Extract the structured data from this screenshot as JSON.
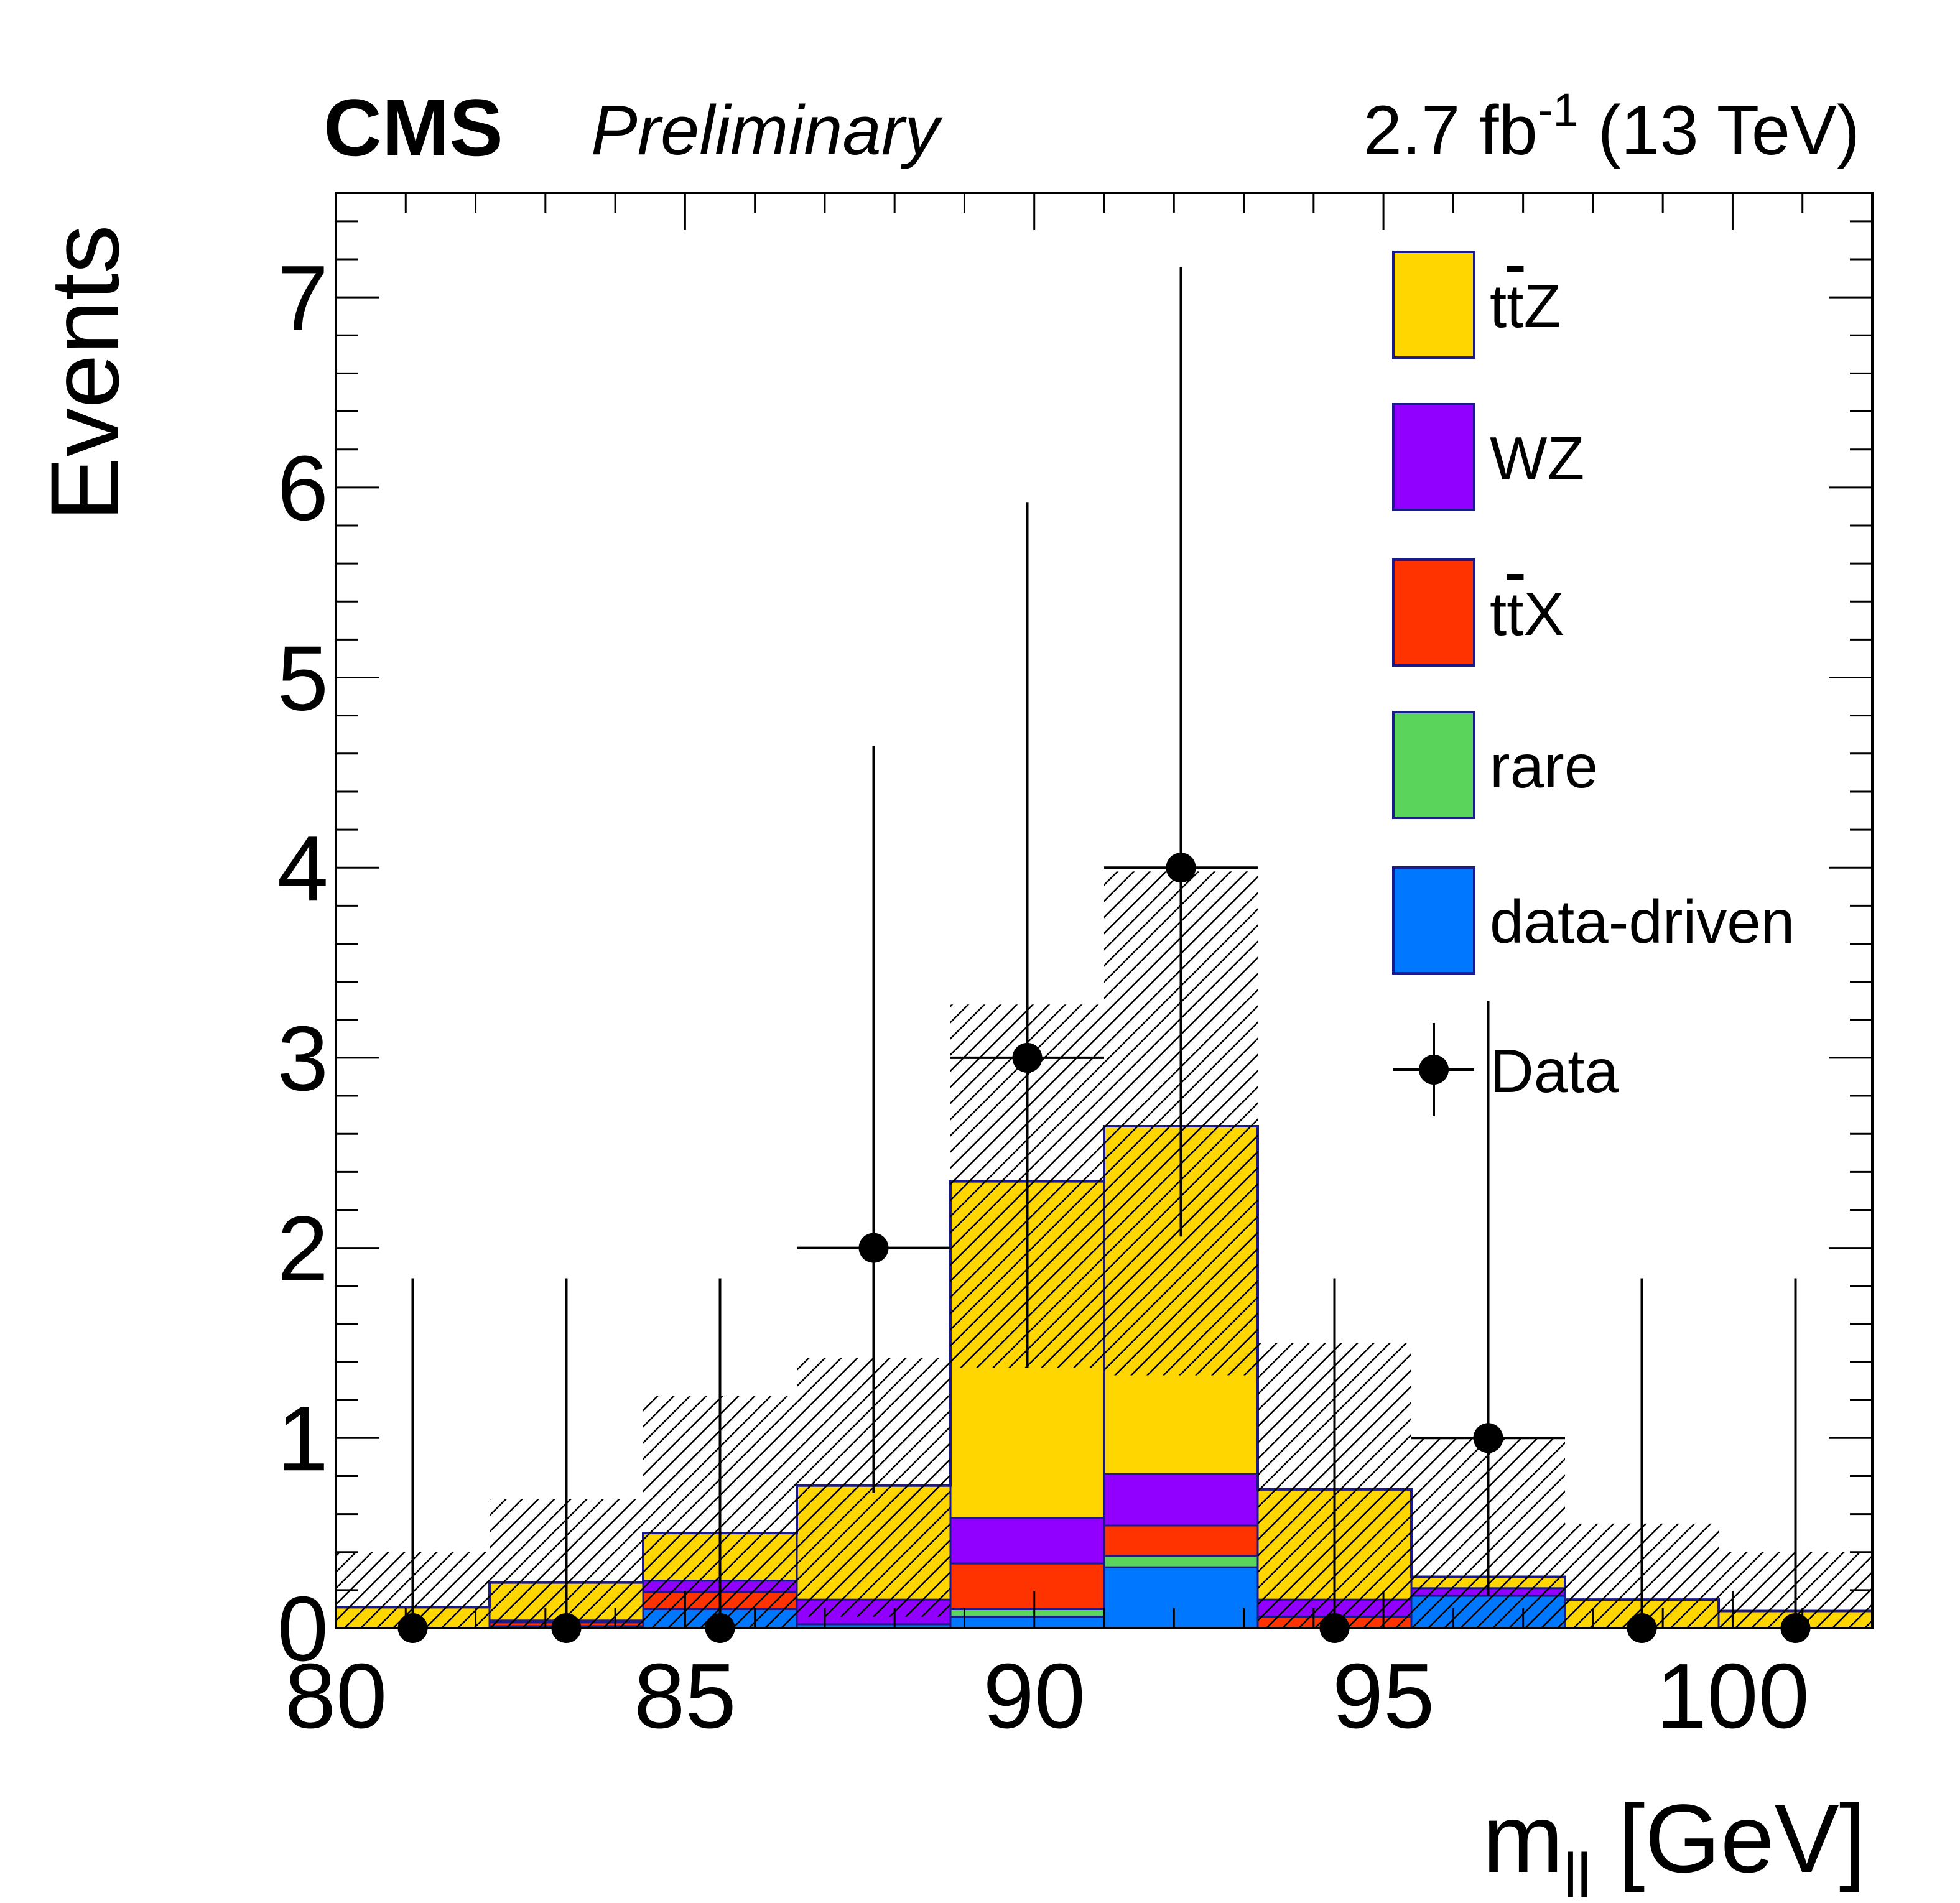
{
  "header": {
    "experiment": "CMS",
    "status": "Preliminary",
    "lumi_value": "2.7 fb",
    "lumi_exponent": "-1",
    "energy": " (13 TeV)"
  },
  "axes": {
    "x_title_main": "m",
    "x_title_sub": "ll",
    "x_title_unit": " [GeV]",
    "y_title": "Events"
  },
  "colors": {
    "ttZ": "#ffd600",
    "WZ": "#9100ff",
    "ttX": "#ff3300",
    "rare": "#5ad45a",
    "data_driven": "#0077ff",
    "outline": "#1a1a8c",
    "data": "#000000"
  },
  "legend": [
    {
      "key": "ttZ",
      "pre": "t",
      "bar": "t",
      "post": "Z"
    },
    {
      "key": "WZ",
      "pre": "WZ",
      "bar": "",
      "post": ""
    },
    {
      "key": "ttX",
      "pre": "t",
      "bar": "t",
      "post": "X"
    },
    {
      "key": "rare",
      "pre": "rare",
      "bar": "",
      "post": ""
    },
    {
      "key": "data_driven",
      "pre": "data-driven",
      "bar": "",
      "post": ""
    },
    {
      "key": "data",
      "pre": "Data",
      "bar": "",
      "post": ""
    }
  ],
  "chart_data": {
    "type": "bar",
    "stacked": true,
    "xlim": [
      80,
      102
    ],
    "ylim": [
      0,
      7.55
    ],
    "bin_edges": [
      80,
      82.2,
      84.4,
      86.6,
      88.8,
      91,
      93.2,
      95.4,
      97.6,
      99.8,
      102
    ],
    "x_ticks": [
      "80",
      "85",
      "90",
      "95",
      "100"
    ],
    "x_tick_values": [
      80,
      85,
      90,
      95,
      100
    ],
    "y_ticks": [
      "0",
      "1",
      "2",
      "3",
      "4",
      "5",
      "6",
      "7"
    ],
    "y_tick_values": [
      0,
      1,
      2,
      3,
      4,
      5,
      6,
      7
    ],
    "series": [
      {
        "key": "data_driven",
        "name": "data-driven",
        "values": [
          0.0,
          0.01,
          0.1,
          0.02,
          0.06,
          0.32,
          0.0,
          0.17,
          0.0,
          0.0
        ]
      },
      {
        "key": "rare",
        "name": "rare",
        "values": [
          0.0,
          0.0,
          0.0,
          0.0,
          0.04,
          0.06,
          0.0,
          0.0,
          0.0,
          0.0
        ]
      },
      {
        "key": "ttX",
        "name": "ttX",
        "values": [
          0.0,
          0.02,
          0.09,
          0.0,
          0.24,
          0.16,
          0.06,
          0.0,
          0.0,
          0.0
        ]
      },
      {
        "key": "WZ",
        "name": "WZ",
        "values": [
          0.0,
          0.01,
          0.06,
          0.13,
          0.24,
          0.27,
          0.09,
          0.04,
          0.0,
          0.0
        ]
      },
      {
        "key": "ttZ",
        "name": "ttZ",
        "values": [
          0.11,
          0.2,
          0.25,
          0.6,
          1.77,
          1.83,
          0.58,
          0.06,
          0.15,
          0.09
        ]
      }
    ],
    "uncertainty_band": {
      "low": [
        0.0,
        0.0,
        0.0,
        0.06,
        1.37,
        1.33,
        0.0,
        0.0,
        0.0,
        0.0
      ],
      "high": [
        0.4,
        0.68,
        1.22,
        1.42,
        3.28,
        3.98,
        1.5,
        1.0,
        0.55,
        0.4
      ]
    },
    "data_points": {
      "x": [
        81.1,
        83.3,
        85.5,
        87.7,
        89.9,
        92.1,
        94.3,
        96.5,
        98.7,
        100.9
      ],
      "y": [
        0,
        0,
        0,
        2,
        3,
        4,
        0,
        1,
        0,
        0
      ],
      "err_low": [
        0,
        0,
        0,
        1.29,
        1.63,
        1.94,
        0,
        0.83,
        0,
        0
      ],
      "err_high": [
        1.84,
        1.84,
        1.84,
        2.64,
        2.92,
        3.16,
        1.84,
        2.3,
        1.84,
        1.84
      ]
    }
  }
}
